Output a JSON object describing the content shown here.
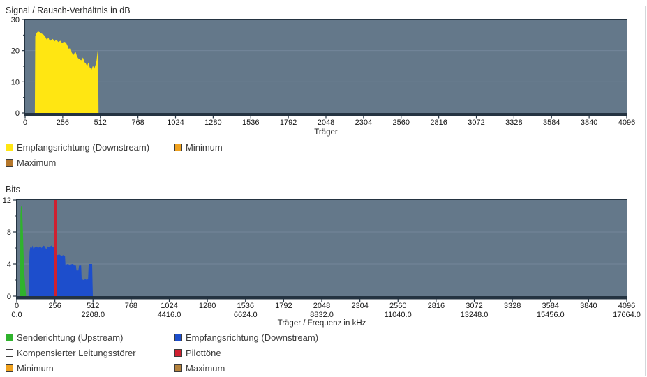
{
  "page": {
    "background": "#ffffff",
    "panel_border_color": "#d3d7da"
  },
  "chart_data": [
    {
      "type": "area",
      "title": "Signal / Rausch-Verhältnis in dB",
      "xlabel": "Träger",
      "ylabel": "dB",
      "xlim": [
        0,
        4096
      ],
      "ylim": [
        0,
        30
      ],
      "xticks": [
        0,
        256,
        512,
        768,
        1024,
        1280,
        1536,
        1792,
        2048,
        2304,
        2560,
        2816,
        3072,
        3328,
        3584,
        3840,
        4096
      ],
      "yticks": [
        0,
        10,
        20,
        30
      ],
      "grid": true,
      "legend_position": "bottom",
      "plot_bg": "#64788a",
      "grid_color": "#73869a",
      "axis_color": "#243341",
      "series": [
        {
          "name": "Empfangsrichtung (Downstream)",
          "color": "#ffe612",
          "points": [
            [
              66,
              0
            ],
            [
              69,
              24.6
            ],
            [
              76,
              25.6
            ],
            [
              88,
              26.2
            ],
            [
              100,
              25.9
            ],
            [
              112,
              25.5
            ],
            [
              126,
              25.1
            ],
            [
              138,
              24.4
            ],
            [
              148,
              23.5
            ],
            [
              158,
              24.2
            ],
            [
              166,
              23.4
            ],
            [
              172,
              23.2
            ],
            [
              188,
              23.8
            ],
            [
              200,
              23.0
            ],
            [
              212,
              23.5
            ],
            [
              226,
              22.8
            ],
            [
              240,
              23.2
            ],
            [
              252,
              22.4
            ],
            [
              264,
              22.9
            ],
            [
              278,
              22.6
            ],
            [
              290,
              21.4
            ],
            [
              298,
              20.5
            ],
            [
              308,
              21.0
            ],
            [
              318,
              19.3
            ],
            [
              330,
              18.6
            ],
            [
              342,
              19.8
            ],
            [
              352,
              18.3
            ],
            [
              360,
              17.6
            ],
            [
              372,
              17.2
            ],
            [
              382,
              16.9
            ],
            [
              394,
              17.8
            ],
            [
              404,
              16.3
            ],
            [
              412,
              16.0
            ],
            [
              422,
              15.0
            ],
            [
              430,
              16.2
            ],
            [
              440,
              14.6
            ],
            [
              452,
              13.9
            ],
            [
              462,
              15.2
            ],
            [
              470,
              14.1
            ],
            [
              480,
              15.5
            ],
            [
              486,
              16.8
            ],
            [
              494,
              20.1
            ],
            [
              497,
              18.0
            ],
            [
              500,
              0
            ]
          ]
        }
      ],
      "legend": [
        {
          "label": "Empfangsrichtung (Downstream)",
          "color": "#ffe612"
        },
        {
          "label": "Minimum",
          "color": "#f0a21f"
        },
        {
          "label": "Maximum",
          "color": "#b5772b"
        }
      ]
    },
    {
      "type": "area",
      "title": "Bits",
      "xlabel": "Träger / Frequenz in kHz",
      "ylabel": "Bits",
      "xlim": [
        0,
        4096
      ],
      "ylim": [
        0,
        12
      ],
      "xticks": [
        0,
        256,
        512,
        768,
        1024,
        1280,
        1536,
        1792,
        2048,
        2304,
        2560,
        2816,
        3072,
        3328,
        3584,
        3840,
        4096
      ],
      "xtick_sublabels": [
        "0.0",
        "",
        "2208.0",
        "",
        "4416.0",
        "",
        "6624.0",
        "",
        "8832.0",
        "",
        "11040.0",
        "",
        "13248.0",
        "",
        "15456.0",
        "",
        "17664.0"
      ],
      "yticks": [
        0,
        4,
        8,
        12
      ],
      "grid": true,
      "legend_position": "bottom",
      "plot_bg": "#64788a",
      "grid_color": "#73869a",
      "axis_color": "#243341",
      "series": [
        {
          "name": "Senderichtung (Upstream)",
          "color": "#2fb32c",
          "points": [
            [
              21,
              0
            ],
            [
              25,
              10.2
            ],
            [
              29,
              11.3
            ],
            [
              36,
              11.0
            ],
            [
              41,
              8.3
            ],
            [
              46,
              5.2
            ],
            [
              52,
              2.6
            ],
            [
              58,
              1.0
            ],
            [
              63,
              0
            ]
          ]
        },
        {
          "name": "Empfangsrichtung (Downstream)",
          "color": "#1d4ecc",
          "points": [
            [
              79,
              0
            ],
            [
              82,
              3.0
            ],
            [
              86,
              5.6
            ],
            [
              91,
              6.1
            ],
            [
              100,
              6.0
            ],
            [
              106,
              6.3
            ],
            [
              112,
              5.9
            ],
            [
              122,
              6.1
            ],
            [
              132,
              6.2
            ],
            [
              144,
              6.0
            ],
            [
              155,
              6.2
            ],
            [
              168,
              6.0
            ],
            [
              176,
              6.3
            ],
            [
              190,
              6.2
            ],
            [
              198,
              5.8
            ],
            [
              206,
              6.2
            ],
            [
              220,
              6.1
            ],
            [
              232,
              6.3
            ],
            [
              244,
              6.1
            ],
            [
              256,
              6.1
            ],
            [
              259,
              5.2
            ],
            [
              272,
              5.1
            ],
            [
              286,
              5.2
            ],
            [
              300,
              5.0
            ],
            [
              312,
              5.1
            ],
            [
              324,
              5.0
            ],
            [
              327,
              3.9
            ],
            [
              342,
              4.0
            ],
            [
              356,
              3.9
            ],
            [
              372,
              4.0
            ],
            [
              388,
              3.9
            ],
            [
              397,
              3.9
            ],
            [
              401,
              3.2
            ],
            [
              414,
              3.2
            ],
            [
              419,
              3.9
            ],
            [
              432,
              3.9
            ],
            [
              436,
              2.1
            ],
            [
              448,
              2.0
            ],
            [
              460,
              2.1
            ],
            [
              472,
              2.0
            ],
            [
              479,
              2.2
            ],
            [
              483,
              4.0
            ],
            [
              496,
              4.0
            ],
            [
              506,
              4.0
            ],
            [
              509,
              1.5
            ],
            [
              511,
              0
            ]
          ]
        }
      ],
      "vline": {
        "label": "Pilottöne",
        "x": 260,
        "color": "#d02030"
      },
      "legend": [
        {
          "label": "Senderichtung (Upstream)",
          "color": "#2fb32c"
        },
        {
          "label": "Empfangsrichtung (Downstream)",
          "color": "#1d4ecc"
        },
        {
          "label": "Kompensierter Leitungsstörer",
          "color": "#ffffff"
        },
        {
          "label": "Pilottöne",
          "color": "#d02030"
        },
        {
          "label": "Minimum",
          "color": "#f0a21f"
        },
        {
          "label": "Maximum",
          "color": "#b5823c"
        }
      ]
    }
  ]
}
